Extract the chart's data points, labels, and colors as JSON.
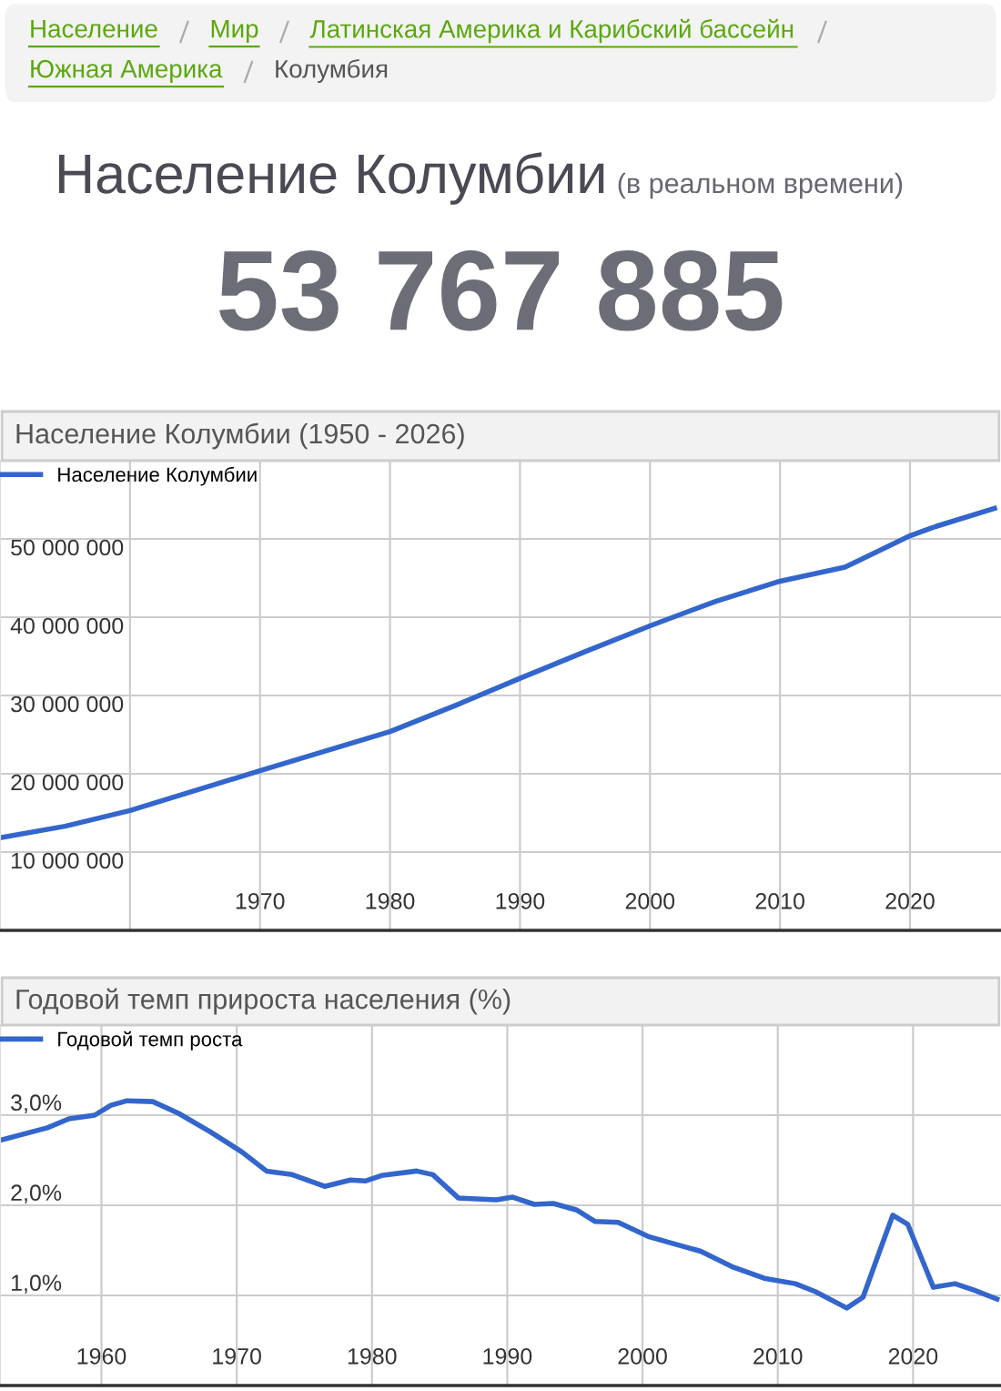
{
  "chart_data": [
    {
      "type": "other",
      "title": "Население Колумбии",
      "subtitle": "(в реальном времени)",
      "annotations": [
        "Население",
        "Мир",
        "Латинская Америка и Карибский бассейн",
        "Южная Америка",
        "Колумбия",
        "53 767 885"
      ]
    },
    {
      "type": "line",
      "title": "Население Колумбии (1950 - 2026)",
      "series": [
        {
          "name": "Население Колумбии",
          "color": "#3366cc",
          "x": [
            1950.2,
            1955,
            1960,
            1970,
            1975,
            1980,
            1985,
            1990,
            1995,
            2000,
            2005,
            2010,
            2015,
            2017,
            2020,
            2022,
            2026.5
          ],
          "values": [
            11900000,
            13300000,
            15300000,
            20400000,
            22900000,
            25400000,
            28700000,
            32200000,
            35600000,
            38900000,
            42000000,
            44600000,
            46400000,
            48000000,
            50400000,
            51600000,
            53900000
          ]
        }
      ],
      "xlim": [
        1950,
        2027
      ],
      "ylim": [
        0,
        60000000
      ],
      "xticks": [
        {
          "value": 1960,
          "label": null
        },
        1970,
        1980,
        1990,
        2000,
        2010,
        2020
      ],
      "yticks": [
        {
          "value": 10000000,
          "label": "10 000 000"
        },
        {
          "value": 20000000,
          "label": "20 000 000"
        },
        {
          "value": 30000000,
          "label": "30 000 000"
        },
        {
          "value": 40000000,
          "label": "40 000 000"
        },
        {
          "value": 50000000,
          "label": "50 000 000"
        }
      ],
      "grid": true,
      "legend": "top left"
    },
    {
      "type": "line",
      "title": "Годовой темп прироста населения (%)",
      "series": [
        {
          "name": "Годовой темп роста",
          "color": "#3366cc",
          "x": [
            1952.5,
            1956.0,
            1957.6,
            1959.5,
            1960.7,
            1961.9,
            1963.8,
            1965.7,
            1968.0,
            1970.4,
            1972.2,
            1974.1,
            1976.5,
            1978.4,
            1979.5,
            1980.7,
            1983.3,
            1984.5,
            1986.4,
            1989.2,
            1990.4,
            1992.0,
            1993.4,
            1995.1,
            1996.5,
            1998.2,
            2000.5,
            2002.4,
            2004.3,
            2006.6,
            2009.0,
            2011.3,
            2012.8,
            2015.1,
            2016.3,
            2017.5,
            2018.5,
            2019.6,
            2021.5,
            2023.1,
            2024.5,
            2026.2
          ],
          "values": [
            2.72,
            2.86,
            2.96,
            3.0,
            3.11,
            3.16,
            3.15,
            3.02,
            2.82,
            2.59,
            2.38,
            2.34,
            2.21,
            2.28,
            2.27,
            2.33,
            2.38,
            2.34,
            2.08,
            2.06,
            2.09,
            2.01,
            2.02,
            1.95,
            1.82,
            1.81,
            1.65,
            1.57,
            1.49,
            1.32,
            1.19,
            1.13,
            1.04,
            0.86,
            0.98,
            1.48,
            1.89,
            1.79,
            1.09,
            1.13,
            1.06,
            0.96
          ]
        }
      ],
      "xlim": [
        1952.5,
        2026.5
      ],
      "ylim": [
        0,
        4
      ],
      "xticks": [
        1960,
        1970,
        1980,
        1990,
        2000,
        2010,
        2020
      ],
      "yticks": [
        {
          "value": 1,
          "label": "1,0%"
        },
        {
          "value": 2,
          "label": "2,0%"
        },
        {
          "value": 3,
          "label": "3,0%"
        }
      ],
      "grid": true,
      "legend": "top left"
    }
  ]
}
